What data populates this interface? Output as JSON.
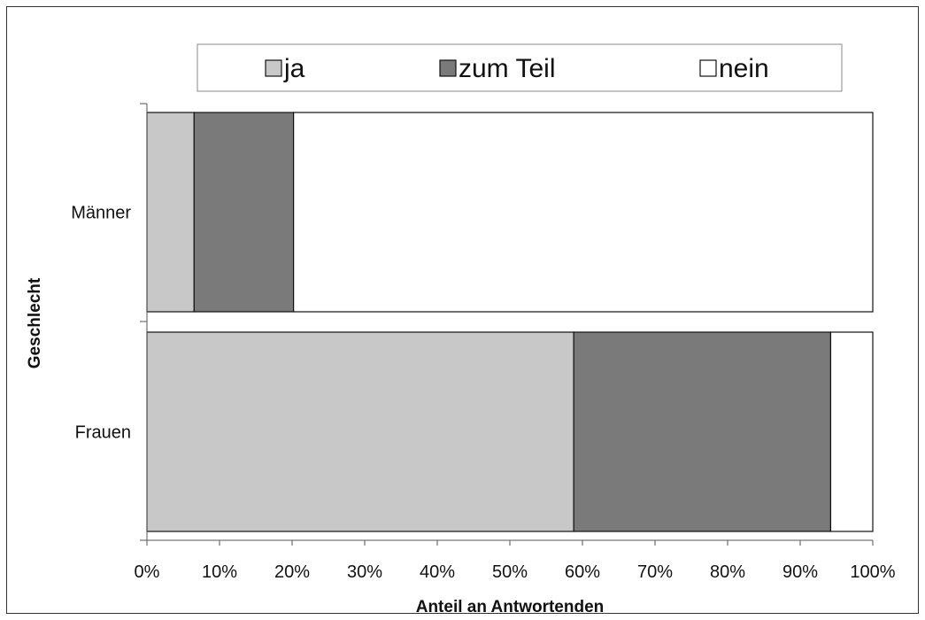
{
  "chart_data": {
    "type": "bar",
    "orientation": "horizontal",
    "stacked": "percent",
    "categories": [
      "Männer",
      "Frauen"
    ],
    "series": [
      {
        "name": "ja",
        "values": [
          6.5,
          58.8
        ],
        "color": "#c8c8c8"
      },
      {
        "name": "zum Teil",
        "values": [
          13.7,
          35.4
        ],
        "color": "#7a7a7a"
      },
      {
        "name": "nein",
        "values": [
          79.8,
          5.8
        ],
        "color": "#ffffff"
      }
    ],
    "xlabel": "Anteil an Antwortenden",
    "ylabel": "Geschlecht",
    "xlim": [
      0,
      100
    ],
    "x_ticks": [
      "0%",
      "10%",
      "20%",
      "30%",
      "40%",
      "50%",
      "60%",
      "70%",
      "80%",
      "90%",
      "100%"
    ],
    "legend_position": "top",
    "grid": false
  }
}
